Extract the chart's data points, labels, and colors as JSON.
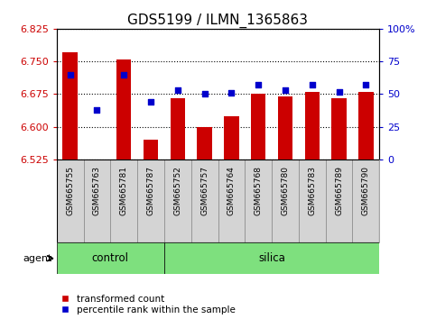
{
  "title": "GDS5199 / ILMN_1365863",
  "samples": [
    "GSM665755",
    "GSM665763",
    "GSM665781",
    "GSM665787",
    "GSM665752",
    "GSM665757",
    "GSM665764",
    "GSM665768",
    "GSM665780",
    "GSM665783",
    "GSM665789",
    "GSM665790"
  ],
  "groups": [
    "control",
    "control",
    "control",
    "control",
    "silica",
    "silica",
    "silica",
    "silica",
    "silica",
    "silica",
    "silica",
    "silica"
  ],
  "transformed_count": [
    6.77,
    6.526,
    6.755,
    6.57,
    6.665,
    6.6,
    6.625,
    6.675,
    6.67,
    6.68,
    6.665,
    6.68
  ],
  "percentile_rank": [
    65,
    38,
    65,
    44,
    53,
    50,
    51,
    57,
    53,
    57,
    52,
    57
  ],
  "ylim_left": [
    6.525,
    6.825
  ],
  "ylim_right": [
    0,
    100
  ],
  "yticks_left": [
    6.525,
    6.6,
    6.675,
    6.75,
    6.825
  ],
  "yticks_right": [
    0,
    25,
    50,
    75,
    100
  ],
  "bar_color": "#CC0000",
  "dot_color": "#0000CC",
  "bar_bottom": 6.525,
  "control_color": "#7EE07E",
  "silica_color": "#7EE07E",
  "agent_label": "agent",
  "legend_bar": "transformed count",
  "legend_dot": "percentile rank within the sample",
  "tick_label_color_left": "#CC0000",
  "tick_label_color_right": "#0000CC",
  "label_fontsize": 8,
  "title_fontsize": 11
}
